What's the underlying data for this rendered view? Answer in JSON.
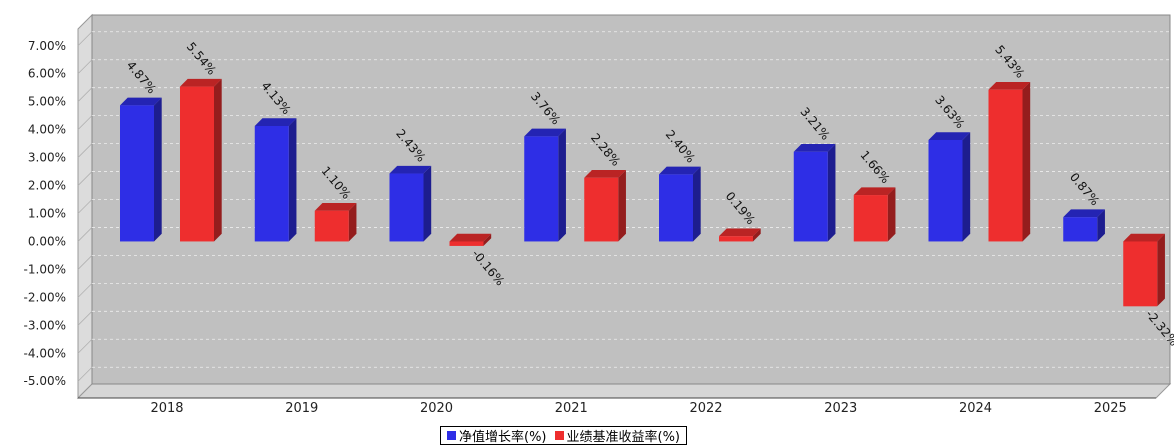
{
  "chart_data": {
    "type": "bar",
    "categories": [
      "2018",
      "2019",
      "2020",
      "2021",
      "2022",
      "2023",
      "2024",
      "2025"
    ],
    "series": [
      {
        "name": "净值增长率(%)",
        "color": "#2e2ee6",
        "values": [
          4.87,
          4.13,
          2.43,
          3.76,
          2.4,
          3.21,
          3.63,
          0.87
        ]
      },
      {
        "name": "业绩基准收益率(%)",
        "color": "#ee2e2e",
        "values": [
          5.54,
          1.1,
          -0.16,
          2.28,
          0.19,
          1.66,
          5.43,
          -2.32
        ]
      }
    ],
    "data_labels": [
      [
        "4.87%",
        "4.13%",
        "2.43%",
        "3.76%",
        "2.40%",
        "3.21%",
        "3.63%",
        "0.87%"
      ],
      [
        "5.54%",
        "1.10%",
        "-0.16%",
        "2.28%",
        "0.19%",
        "1.66%",
        "5.43%",
        "-2.32%"
      ]
    ],
    "yticks": [
      {
        "value": 7,
        "label": "7.00%"
      },
      {
        "value": 6,
        "label": "6.00%"
      },
      {
        "value": 5,
        "label": "5.00%"
      },
      {
        "value": 4,
        "label": "4.00%"
      },
      {
        "value": 3,
        "label": "3.00%"
      },
      {
        "value": 2,
        "label": "2.00%"
      },
      {
        "value": 1,
        "label": "1.00%"
      },
      {
        "value": 0,
        "label": "0.00%"
      },
      {
        "value": -1,
        "label": "-1.00%"
      },
      {
        "value": -2,
        "label": "-2.00%"
      },
      {
        "value": -3,
        "label": "-3.00%"
      },
      {
        "value": -4,
        "label": "-4.00%"
      },
      {
        "value": -5,
        "label": "-5.00%"
      }
    ],
    "ylim": [
      -5.6,
      7.6
    ],
    "grid": true,
    "legend_position": "bottom-center",
    "plot_background": "#c0c0c0"
  }
}
